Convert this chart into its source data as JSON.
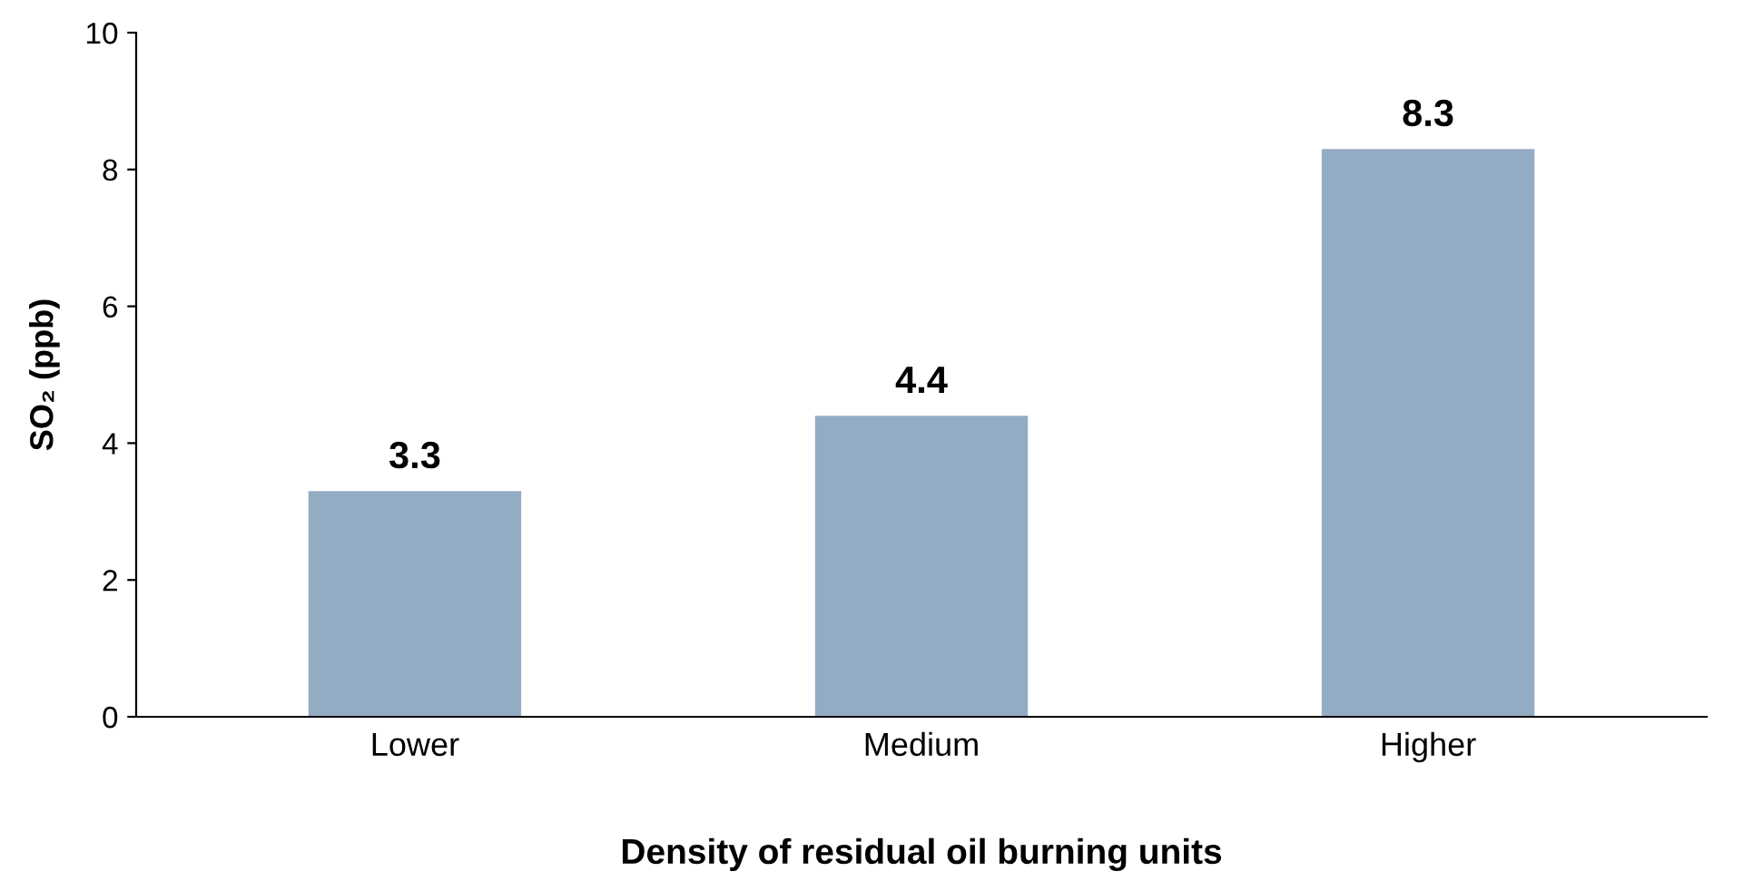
{
  "chart_data": {
    "type": "bar",
    "xlabel": "Density of residual oil burning units",
    "ylabel": "SO₂ (ppb)",
    "categories": [
      "Lower",
      "Medium",
      "Higher"
    ],
    "values": [
      3.3,
      4.4,
      8.3
    ],
    "color": "#94abc4",
    "ylim": [
      0,
      10
    ],
    "yticks": [
      0,
      2,
      4,
      6,
      8,
      10
    ],
    "grid": false,
    "data_labels": true
  }
}
